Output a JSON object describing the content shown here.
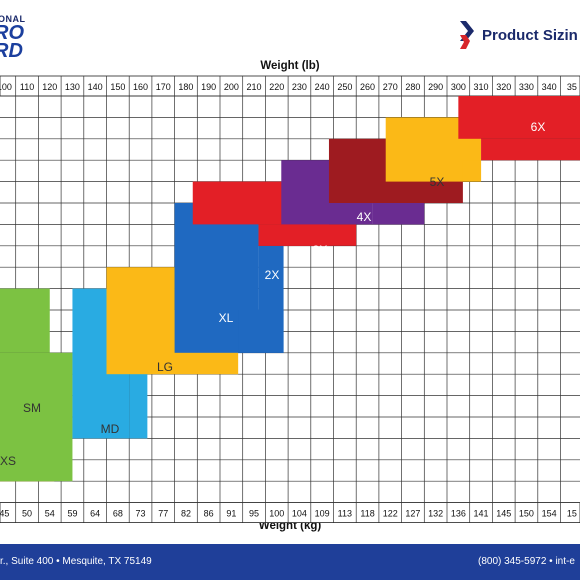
{
  "brand": {
    "logo_line1": "ONAL",
    "logo_line2": "RO",
    "logo_line3": "RD",
    "title": "Product Sizin",
    "accent_colors": [
      "#1b2a6b",
      "#d7262b"
    ]
  },
  "footer": {
    "address": "r., Suite 400 • Mesquite, TX 75149",
    "phone": "(800) 345-5972 • int-e",
    "background": "#1f3f99"
  },
  "chart_data": {
    "type": "heatmap",
    "xlabel_top": "Weight (lb)",
    "xlabel_bottom": "Weight (kg)",
    "lb_ticks": [
      "100",
      "110",
      "120",
      "130",
      "140",
      "150",
      "160",
      "170",
      "180",
      "190",
      "200",
      "210",
      "220",
      "230",
      "240",
      "250",
      "260",
      "270",
      "280",
      "290",
      "300",
      "310",
      "320",
      "330",
      "340",
      "35"
    ],
    "kg_ticks": [
      "45",
      "50",
      "54",
      "59",
      "64",
      "68",
      "73",
      "77",
      "82",
      "86",
      "91",
      "95",
      "100",
      "104",
      "109",
      "113",
      "118",
      "122",
      "127",
      "132",
      "136",
      "141",
      "145",
      "150",
      "154",
      "15"
    ],
    "row_count": 19,
    "grid": true,
    "sizes": [
      {
        "name": "XS",
        "color": "#eef21f",
        "text_color": "#333333",
        "regions": [
          {
            "lb": [
              95,
              122
            ],
            "rows": [
              13,
              18
            ]
          }
        ]
      },
      {
        "name": "SM",
        "color": "#7cc242",
        "text_color": "#333333",
        "regions": [
          {
            "lb": [
              95,
              120
            ],
            "rows": [
              9,
              12
            ]
          },
          {
            "lb": [
              95,
              130
            ],
            "rows": [
              12,
              18
            ]
          }
        ]
      },
      {
        "name": "MD",
        "color": "#29abe2",
        "text_color": "#333333",
        "regions": [
          {
            "lb": [
              130,
              155
            ],
            "rows": [
              9,
              16
            ]
          },
          {
            "lb": [
              155,
              163
            ],
            "rows": [
              11,
              16
            ]
          }
        ]
      },
      {
        "name": "LG",
        "color": "#fbb917",
        "text_color": "#333333",
        "regions": [
          {
            "lb": [
              145,
              175
            ],
            "rows": [
              8,
              10
            ]
          },
          {
            "lb": [
              145,
              195
            ],
            "rows": [
              10,
              13
            ]
          },
          {
            "lb": [
              195,
              203
            ],
            "rows": [
              10,
              13
            ]
          }
        ]
      },
      {
        "name": "XL",
        "color": "#1f69c1",
        "text_color": "#ffffff",
        "regions": [
          {
            "lb": [
              175,
              212
            ],
            "rows": [
              5,
              12
            ]
          },
          {
            "lb": [
              212,
              223
            ],
            "rows": [
              7,
              12
            ]
          },
          {
            "lb": [
              203,
              223
            ],
            "rows": [
              10,
              12
            ]
          }
        ]
      },
      {
        "name": "2X",
        "color": "#e31f26",
        "text_color": "#ffffff",
        "regions": [
          {
            "lb": [
              183,
              243
            ],
            "rows": [
              4,
              6
            ]
          },
          {
            "lb": [
              212,
              243
            ],
            "rows": [
              6,
              7
            ]
          },
          {
            "lb": [
              212,
              255
            ],
            "rows": [
              6,
              7
            ]
          }
        ]
      },
      {
        "name": "3X",
        "color": "#6a2c91",
        "text_color": "#ffffff",
        "regions": [
          {
            "lb": [
              222,
              262
            ],
            "rows": [
              3,
              6
            ]
          },
          {
            "lb": [
              262,
              285
            ],
            "rows": [
              5,
              6
            ]
          }
        ]
      },
      {
        "name": "4X",
        "color": "#9e1b20",
        "text_color": "#ffffff",
        "regions": [
          {
            "lb": [
              243,
              302
            ],
            "rows": [
              2,
              5
            ]
          }
        ]
      },
      {
        "name": "5X",
        "color": "#fbb917",
        "text_color": "#333333",
        "regions": [
          {
            "lb": [
              268,
              310
            ],
            "rows": [
              1,
              4
            ]
          },
          {
            "lb": [
              302,
              310
            ],
            "rows": [
              3,
              4
            ]
          }
        ]
      },
      {
        "name": "6X",
        "color": "#e31f26",
        "text_color": "#ffffff",
        "regions": [
          {
            "lb": [
              300,
              360
            ],
            "rows": [
              0,
              2
            ]
          },
          {
            "lb": [
              310,
              360
            ],
            "rows": [
              2,
              3
            ]
          }
        ]
      }
    ]
  }
}
